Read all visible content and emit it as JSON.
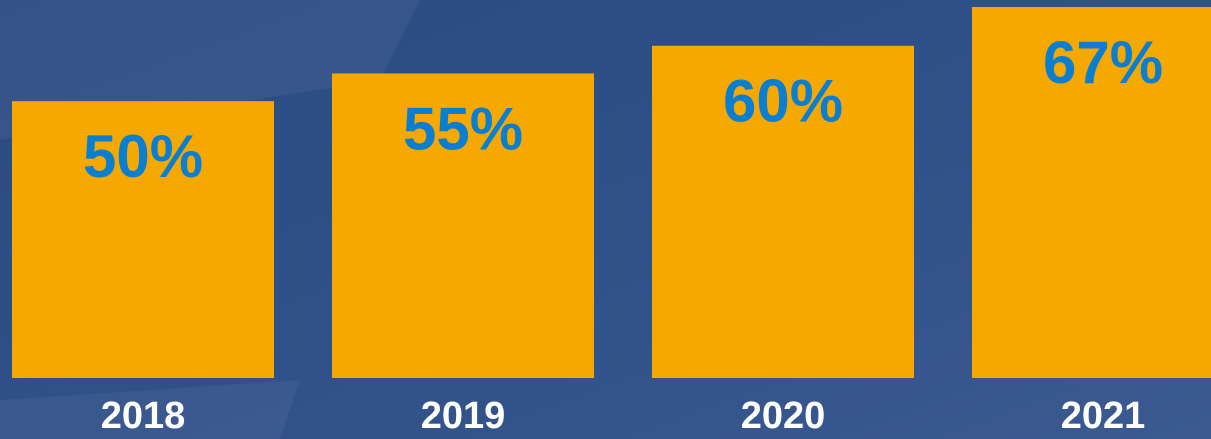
{
  "chart_data": {
    "type": "bar",
    "categories": [
      "2018",
      "2019",
      "2020",
      "2021"
    ],
    "values": [
      50,
      55,
      60,
      67
    ],
    "value_labels": [
      "50%",
      "55%",
      "60%",
      "67%"
    ],
    "color": "#f5a800"
  }
}
